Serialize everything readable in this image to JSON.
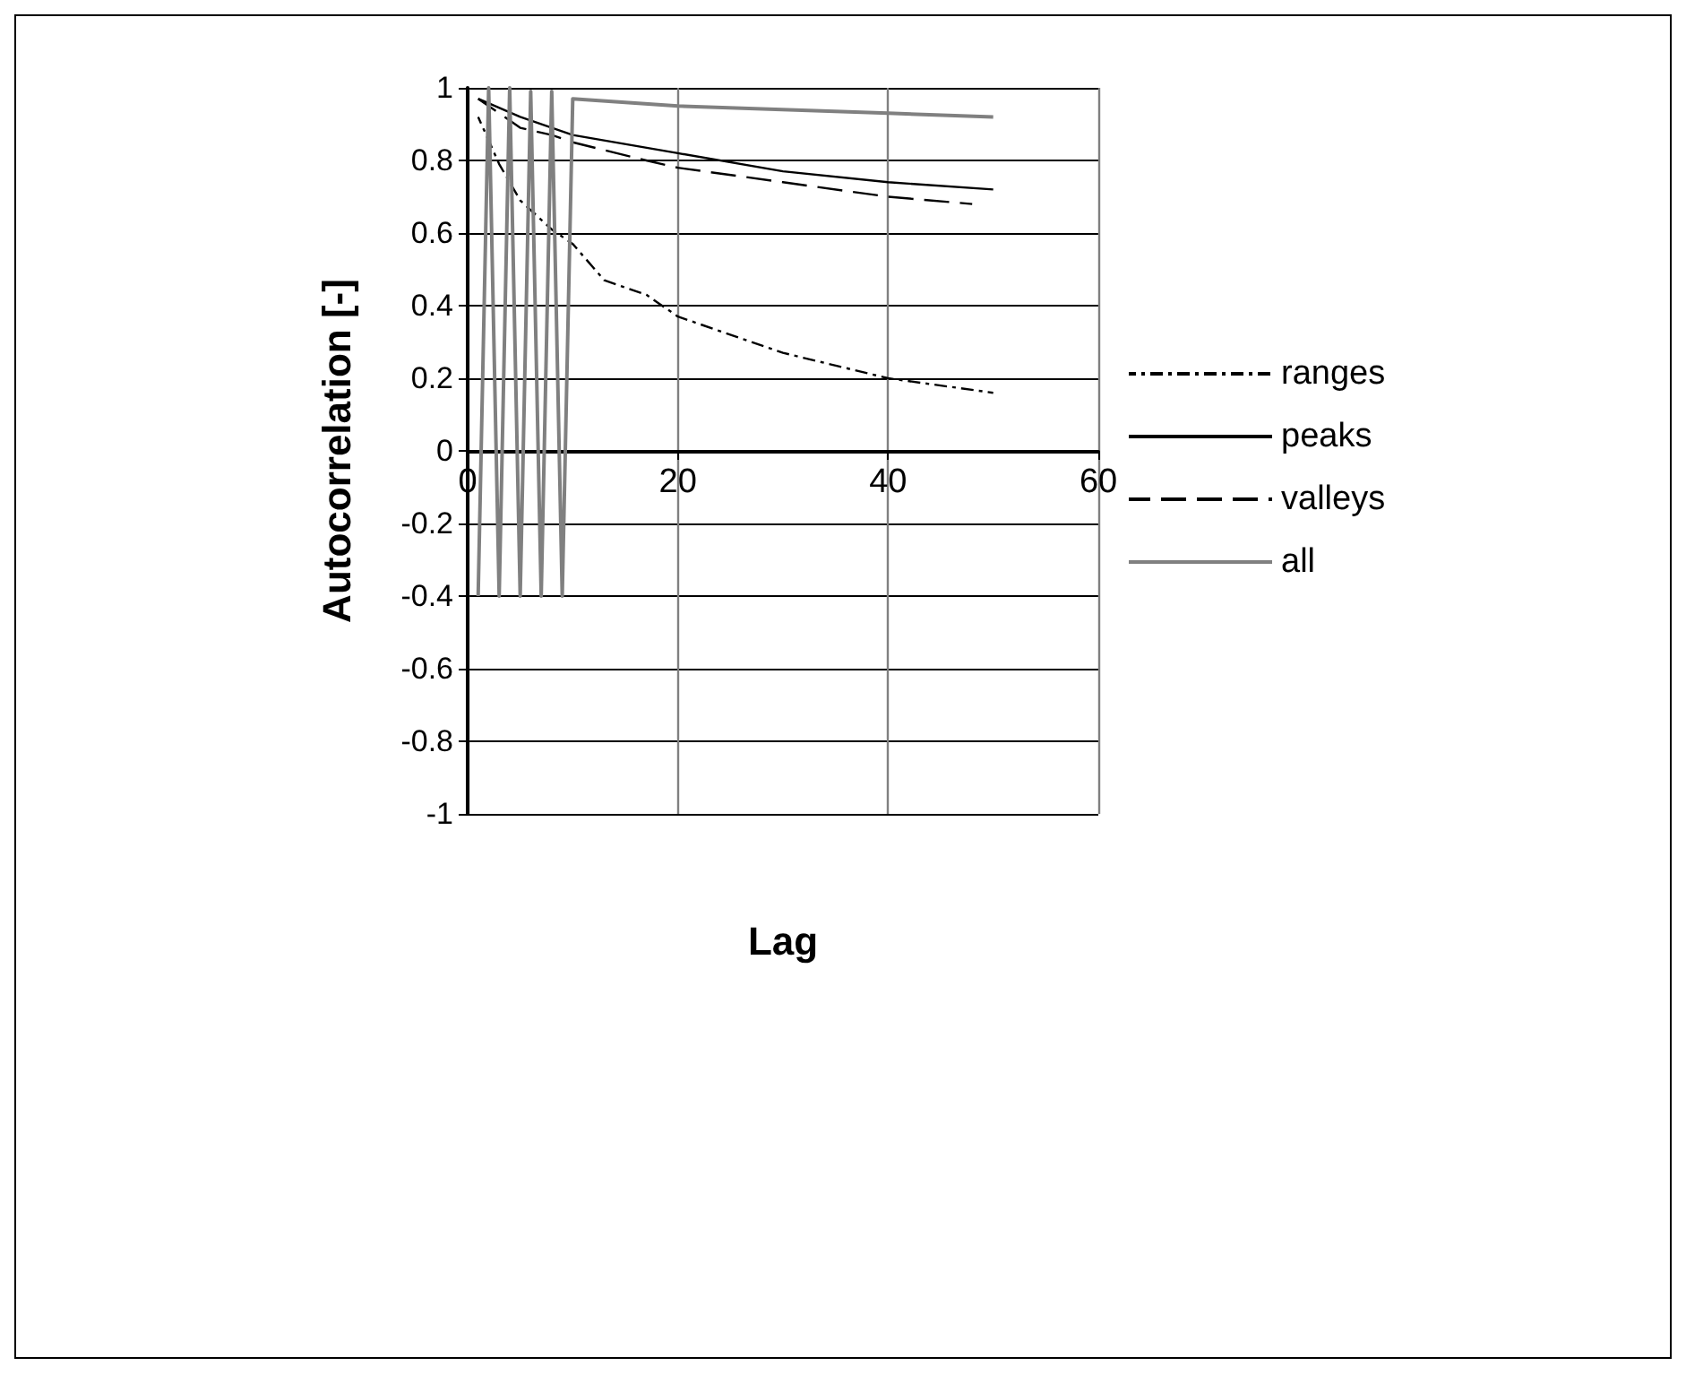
{
  "chart_data": {
    "type": "line",
    "xlabel": "Lag",
    "ylabel": "Autocorrelation [-]",
    "xlim": [
      0,
      60
    ],
    "xticks": [
      0,
      20,
      40,
      60
    ],
    "ylim": [
      -1,
      1
    ],
    "yticks": [
      -1,
      -0.8,
      -0.6,
      -0.4,
      -0.2,
      0,
      0.2,
      0.4,
      0.6,
      0.8,
      1
    ],
    "grid": true,
    "legend": "right",
    "marker": "none",
    "series": [
      {
        "name": "ranges",
        "color": "#000000",
        "line_style": "dashdot",
        "x": [
          1,
          3,
          5,
          8,
          10,
          13,
          17,
          20,
          30,
          40,
          50
        ],
        "values": [
          0.92,
          0.79,
          0.69,
          0.61,
          0.57,
          0.47,
          0.43,
          0.37,
          0.27,
          0.2,
          0.16
        ]
      },
      {
        "name": "peaks",
        "color": "#000000",
        "line_style": "solid",
        "x": [
          1,
          5,
          10,
          20,
          30,
          40,
          50
        ],
        "values": [
          0.97,
          0.92,
          0.87,
          0.82,
          0.77,
          0.74,
          0.72
        ]
      },
      {
        "name": "valleys",
        "color": "#000000",
        "line_style": "dashed",
        "x": [
          1,
          5,
          8,
          10,
          17,
          20,
          30,
          40,
          48
        ],
        "values": [
          0.97,
          0.89,
          0.87,
          0.85,
          0.8,
          0.78,
          0.74,
          0.7,
          0.68
        ]
      },
      {
        "name": "all",
        "color": "#808080",
        "line_style": "solid",
        "x": [
          1,
          2,
          3,
          4,
          5,
          6,
          7,
          8,
          9,
          10,
          20,
          40,
          50
        ],
        "values": [
          -0.4,
          1,
          -0.4,
          1,
          -0.4,
          0.99,
          -0.4,
          0.99,
          -0.4,
          0.97,
          0.95,
          0.93,
          0.92
        ]
      }
    ]
  }
}
